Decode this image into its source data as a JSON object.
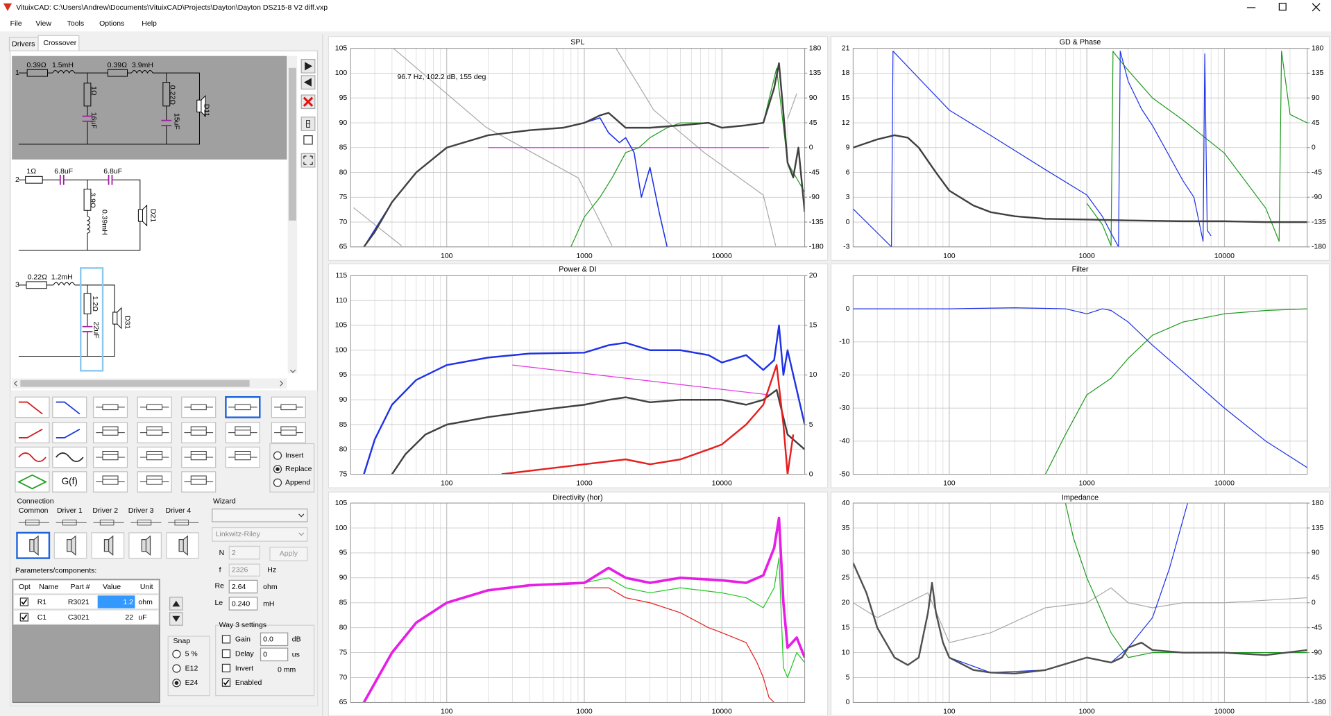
{
  "window": {
    "title": "VituixCAD: C:\\Users\\Andrew\\Documents\\VituixCAD\\Projects\\Dayton\\Dayton DS215-8 V2 diff.vxp",
    "menu": [
      "File",
      "View",
      "Tools",
      "Options",
      "Help"
    ]
  },
  "tabs": [
    "Drivers",
    "Crossover"
  ],
  "circuit": {
    "ways": [
      "1",
      "2",
      "3"
    ],
    "labels": [
      "0.39Ω",
      "1.5mH",
      "0.39Ω",
      "3.9mH",
      "1Ω",
      "16uF",
      "0.22Ω",
      "15uF",
      "D11",
      "1Ω",
      "6.8uF",
      "6.8uF",
      "3.9Ω",
      "0.39mH",
      "D21",
      "0.22Ω",
      "1.2mH",
      "1.2Ω",
      "22uF",
      "D31"
    ]
  },
  "tool_buttons": {
    "function": "G(f)",
    "modes": [
      "Insert",
      "Replace",
      "Append"
    ],
    "selected_mode": 1
  },
  "connection": {
    "title": "Connection",
    "drivers": [
      "Common",
      "Driver 1",
      "Driver 2",
      "Driver 3",
      "Driver 4"
    ]
  },
  "wizard": {
    "title": "Wizard",
    "filter": "Linkwitz-Riley",
    "n_label": "N",
    "n": 2,
    "f_label": "f",
    "f": 2326,
    "f_unit": "Hz",
    "apply": "Apply",
    "re_label": "Re",
    "re": 2.64,
    "re_unit": "ohm",
    "le_label": "Le",
    "le": "0.240",
    "le_unit": "mH"
  },
  "parameters": {
    "title": "Parameters/components:",
    "columns": [
      "Opt",
      "Name",
      "Part #",
      "Value",
      "Unit"
    ],
    "rows": [
      {
        "opt": true,
        "name": "R1",
        "part": "R3021",
        "value": 1.2,
        "unit": "ohm"
      },
      {
        "opt": true,
        "name": "C1",
        "part": "C3021",
        "value": 22,
        "unit": "uF"
      }
    ]
  },
  "snap": {
    "title": "Snap",
    "options": [
      "5 %",
      "E12",
      "E24"
    ],
    "selected": 2
  },
  "way_settings": {
    "title": "Way 3 settings",
    "gain_label": "Gain",
    "gain": "0.0",
    "gain_unit": "dB",
    "delay_label": "Delay",
    "delay": 0,
    "delay_unit": "us",
    "invert_label": "Invert",
    "offset": "0 mm",
    "enabled_label": "Enabled",
    "enabled": true
  },
  "x_grid": [
    20,
    30,
    40,
    50,
    60,
    70,
    80,
    90,
    200,
    300,
    400,
    500,
    600,
    700,
    800,
    900,
    2000,
    3000,
    4000,
    5000,
    6000,
    7000,
    8000,
    9000,
    20000,
    30000,
    40000
  ],
  "plots": [
    {
      "title": "SPL",
      "xlim": [
        20,
        40000
      ],
      "xticks": [
        100,
        1000,
        10000
      ],
      "ylim": [
        65,
        105
      ],
      "yticks": [
        65,
        70,
        75,
        80,
        85,
        90,
        95,
        100,
        105
      ],
      "y2lim": [
        -180,
        180
      ],
      "y2ticks": [
        -180,
        -135,
        -90,
        -45,
        0,
        45,
        90,
        135,
        180
      ],
      "annotation": "96.7 Hz, 102.2 dB, 155 deg",
      "series": [
        {
          "color": "#a8a8a8",
          "line_width": 1,
          "axis": "y2",
          "x": [
            21,
            47,
            45,
            41,
            193,
            906,
            1590,
            1650,
            1700,
            3200,
            7450,
            20000,
            24600,
            27000,
            30000,
            35000
          ],
          "values": [
            -109,
            -178,
            null,
            180,
            37,
            -55,
            -178,
            null,
            180,
            68,
            -9,
            -86,
            -178,
            null,
            52,
            98
          ]
        },
        {
          "color": "#e632e6",
          "line_width": 1,
          "x": [
            200,
            22000
          ],
          "values": [
            85,
            85
          ]
        },
        {
          "color": "#1e9b1e",
          "line_width": 1,
          "x": [
            800,
            1000,
            1300,
            1600,
            2000,
            2500,
            3000,
            4000,
            5000,
            8000,
            10000,
            15000,
            20000,
            25000,
            30000,
            40000
          ],
          "values": [
            65,
            71,
            75,
            79,
            84,
            85,
            87,
            89,
            90,
            90,
            89,
            89.5,
            90,
            101,
            82,
            76
          ]
        },
        {
          "color": "#1e32e6",
          "line_width": 1.3,
          "x": [
            25,
            40,
            60,
            100,
            200,
            400,
            700,
            1000,
            1300,
            1500,
            1800,
            2000,
            2300,
            2600,
            3000,
            3500,
            4000
          ],
          "values": [
            65,
            74,
            80,
            85,
            87.5,
            88.5,
            89,
            90,
            91,
            88,
            86,
            87,
            84,
            75,
            81,
            72,
            65
          ]
        },
        {
          "color": "#404040",
          "line_width": 2,
          "x": [
            25,
            30,
            40,
            60,
            100,
            200,
            400,
            700,
            1000,
            1300,
            1500,
            2000,
            3000,
            5000,
            8000,
            10000,
            15000,
            20000,
            24000,
            26000,
            28000,
            30000,
            33000,
            36000,
            40000
          ],
          "values": [
            65,
            68,
            74,
            80,
            85,
            87.5,
            88.5,
            89,
            90,
            91.5,
            92,
            89,
            89,
            89.5,
            90,
            89,
            89.5,
            90,
            97,
            102,
            92,
            82,
            79,
            85,
            72
          ]
        }
      ]
    },
    {
      "title": "GD & Phase",
      "xlim": [
        20,
        40000
      ],
      "xticks": [
        100,
        1000,
        10000
      ],
      "ylim": [
        -3,
        21
      ],
      "yticks": [
        -3,
        0,
        3,
        6,
        9,
        12,
        15,
        18,
        21
      ],
      "y2lim": [
        -180,
        180
      ],
      "y2ticks": [
        -180,
        -135,
        -90,
        -45,
        0,
        45,
        90,
        135,
        180
      ],
      "series": [
        {
          "color": "#1e9b1e",
          "line_width": 1,
          "axis": "y2",
          "x": [
            1000,
            1300,
            1500,
            1550,
            1600,
            2000,
            3000,
            5000,
            10000,
            20000,
            25000,
            26000,
            30000,
            40000
          ],
          "values": [
            -101,
            -140,
            -178,
            175,
            170,
            140,
            90,
            50,
            -10,
            -110,
            -170,
            175,
            60,
            45
          ]
        },
        {
          "color": "#1e32e6",
          "line_width": 1,
          "axis": "y2",
          "x": [
            20,
            38,
            39,
            100,
            200,
            500,
            1000,
            1300,
            1500,
            1700,
            1750,
            2000,
            2500,
            3000,
            5000,
            6000,
            7000,
            7200,
            7500,
            8000
          ],
          "values": [
            -111,
            -180,
            175,
            68,
            22,
            -40,
            -86,
            -125,
            -155,
            -180,
            175,
            120,
            70,
            40,
            -60,
            -90,
            -170,
            170,
            -150,
            -160
          ]
        },
        {
          "color": "#404040",
          "line_width": 2,
          "x": [
            20,
            30,
            40,
            50,
            60,
            80,
            100,
            150,
            200,
            300,
            500,
            1000,
            2000,
            5000,
            10000,
            20000,
            40000
          ],
          "values": [
            9,
            10,
            10.5,
            10.2,
            9,
            6,
            3.8,
            2,
            1.2,
            0.7,
            0.4,
            0.3,
            0.2,
            0.1,
            0.1,
            0,
            0
          ]
        }
      ]
    },
    {
      "title": "Power & DI",
      "xlim": [
        20,
        40000
      ],
      "xticks": [
        100,
        1000,
        10000
      ],
      "ylim": [
        75,
        115
      ],
      "yticks": [
        75,
        80,
        85,
        90,
        95,
        100,
        105,
        110,
        115
      ],
      "y2lim": [
        0,
        20
      ],
      "y2ticks": [
        0,
        5,
        10,
        15,
        20
      ],
      "series": [
        {
          "color": "#e632e6",
          "line_width": 1,
          "x": [
            300,
            22000
          ],
          "values": [
            97,
            91
          ]
        },
        {
          "color": "#404040",
          "line_width": 2,
          "x": [
            40,
            50,
            70,
            100,
            200,
            500,
            1000,
            1500,
            2000,
            3000,
            5000,
            10000,
            15000,
            20000,
            25000,
            30000,
            40000
          ],
          "values": [
            75,
            79,
            83,
            85,
            86.5,
            88,
            89,
            90,
            90.5,
            89.5,
            90,
            90,
            89,
            90,
            92,
            83,
            80
          ]
        },
        {
          "color": "#e61e1e",
          "line_width": 2,
          "axis": "y2",
          "x": [
            250,
            500,
            1000,
            2000,
            3000,
            5000,
            8000,
            10000,
            15000,
            20000,
            25000,
            28000,
            30000,
            33000
          ],
          "values": [
            0,
            0.5,
            1,
            1.5,
            1,
            1.5,
            2.5,
            3,
            5,
            7,
            11,
            5,
            0,
            4
          ]
        },
        {
          "color": "#1e32e6",
          "line_width": 2,
          "x": [
            25,
            30,
            40,
            60,
            100,
            200,
            400,
            1000,
            1500,
            2000,
            3000,
            5000,
            8000,
            10000,
            15000,
            20000,
            24000,
            26000,
            28000,
            30000,
            35000,
            40000
          ],
          "values": [
            75,
            82,
            89,
            94,
            97,
            98.5,
            99.3,
            99.5,
            101,
            101.5,
            100,
            100,
            99,
            97.5,
            99,
            96,
            98,
            105,
            95,
            100,
            92,
            85
          ]
        }
      ]
    },
    {
      "title": "Filter",
      "xlim": [
        20,
        40000
      ],
      "xticks": [
        100,
        1000,
        10000
      ],
      "ylim": [
        -50,
        10
      ],
      "yticks": [
        -50,
        -40,
        -30,
        -20,
        -10,
        0
      ],
      "series": [
        {
          "color": "#1e9b1e",
          "line_width": 1,
          "x": [
            500,
            700,
            1000,
            1500,
            2000,
            3000,
            5000,
            10000,
            20000,
            40000
          ],
          "values": [
            -50,
            -38,
            -26,
            -21,
            -15,
            -8,
            -4,
            -1.5,
            -0.5,
            0
          ]
        },
        {
          "color": "#1e32e6",
          "line_width": 1,
          "x": [
            20,
            100,
            300,
            700,
            1000,
            1300,
            1500,
            2000,
            3000,
            5000,
            10000,
            20000,
            40000
          ],
          "values": [
            0,
            0,
            0.3,
            0,
            -1.5,
            0,
            -0.5,
            -4,
            -11,
            -19,
            -30,
            -40,
            -48
          ]
        }
      ]
    },
    {
      "title": "Directivity (hor)",
      "xlim": [
        20,
        40000
      ],
      "xticks": [
        100,
        1000,
        10000
      ],
      "ylim": [
        65,
        105
      ],
      "yticks": [
        65,
        70,
        75,
        80,
        85,
        90,
        95,
        100,
        105
      ],
      "series": [
        {
          "color": "#e61e1e",
          "line_width": 1,
          "x": [
            1000,
            1500,
            2000,
            3000,
            5000,
            8000,
            10000,
            15000,
            18000,
            20000,
            22000,
            24000
          ],
          "values": [
            88,
            88,
            86,
            85,
            83,
            80,
            79,
            77,
            73,
            70,
            66,
            65
          ]
        },
        {
          "color": "#1ec81e",
          "line_width": 1,
          "x": [
            1000,
            1500,
            2000,
            3000,
            5000,
            10000,
            15000,
            20000,
            24000,
            26000,
            28000,
            30000,
            35000,
            40000
          ],
          "values": [
            89,
            90,
            88,
            87,
            88,
            87,
            86,
            84,
            88,
            94,
            72,
            70,
            75,
            73
          ]
        },
        {
          "color": "#e61ee6",
          "line_width": 3,
          "x": [
            25,
            40,
            60,
            100,
            200,
            400,
            1000,
            1500,
            2000,
            3000,
            5000,
            10000,
            15000,
            20000,
            24000,
            26000,
            28000,
            30000,
            35000,
            40000
          ],
          "values": [
            65,
            75,
            81,
            85,
            87.5,
            88.5,
            89,
            92,
            90,
            89,
            90,
            89.5,
            89,
            90.5,
            96,
            102,
            85,
            76,
            78,
            74
          ]
        }
      ]
    },
    {
      "title": "Impedance",
      "xlim": [
        20,
        40000
      ],
      "xticks": [
        100,
        1000,
        10000
      ],
      "ylim": [
        0,
        40
      ],
      "yticks": [
        0,
        5,
        10,
        15,
        20,
        25,
        30,
        35,
        40
      ],
      "y2lim": [
        -180,
        180
      ],
      "y2ticks": [
        -180,
        -135,
        -90,
        -45,
        0,
        45,
        90,
        135,
        180
      ],
      "series": [
        {
          "color": "#a8a8a8",
          "line_width": 1,
          "x": [
            20,
            30,
            50,
            70,
            100,
            200,
            500,
            1000,
            1500,
            2000,
            3000,
            5000,
            10000,
            40000
          ],
          "values": [
            20,
            17,
            20,
            22,
            12,
            14,
            19,
            20,
            23,
            20,
            19,
            20,
            20,
            21
          ]
        },
        {
          "color": "#1e9b1e",
          "line_width": 1,
          "x": [
            700,
            800,
            1000,
            1500,
            2000,
            3000,
            5000,
            10000,
            40000
          ],
          "values": [
            40,
            33,
            25,
            14,
            9,
            10,
            10,
            10,
            10
          ]
        },
        {
          "color": "#1e32e6",
          "line_width": 1,
          "x": [
            100,
            200,
            500,
            1000,
            1500,
            2000,
            3000,
            4000,
            5400
          ],
          "values": [
            9,
            6,
            6.5,
            9,
            8,
            11,
            17,
            27,
            40
          ]
        },
        {
          "color": "#505050",
          "line_width": 2,
          "x": [
            20,
            25,
            30,
            40,
            50,
            60,
            70,
            75,
            80,
            90,
            100,
            150,
            200,
            300,
            500,
            1000,
            1500,
            1800,
            2000,
            2500,
            3000,
            5000,
            10000,
            20000,
            40000
          ],
          "values": [
            28,
            22,
            15,
            9,
            7.5,
            9,
            18,
            24,
            18,
            12,
            9,
            6.5,
            6,
            5.8,
            6.5,
            9,
            8,
            9,
            11,
            12,
            10.5,
            10,
            10,
            9.5,
            10.5
          ]
        }
      ]
    }
  ]
}
